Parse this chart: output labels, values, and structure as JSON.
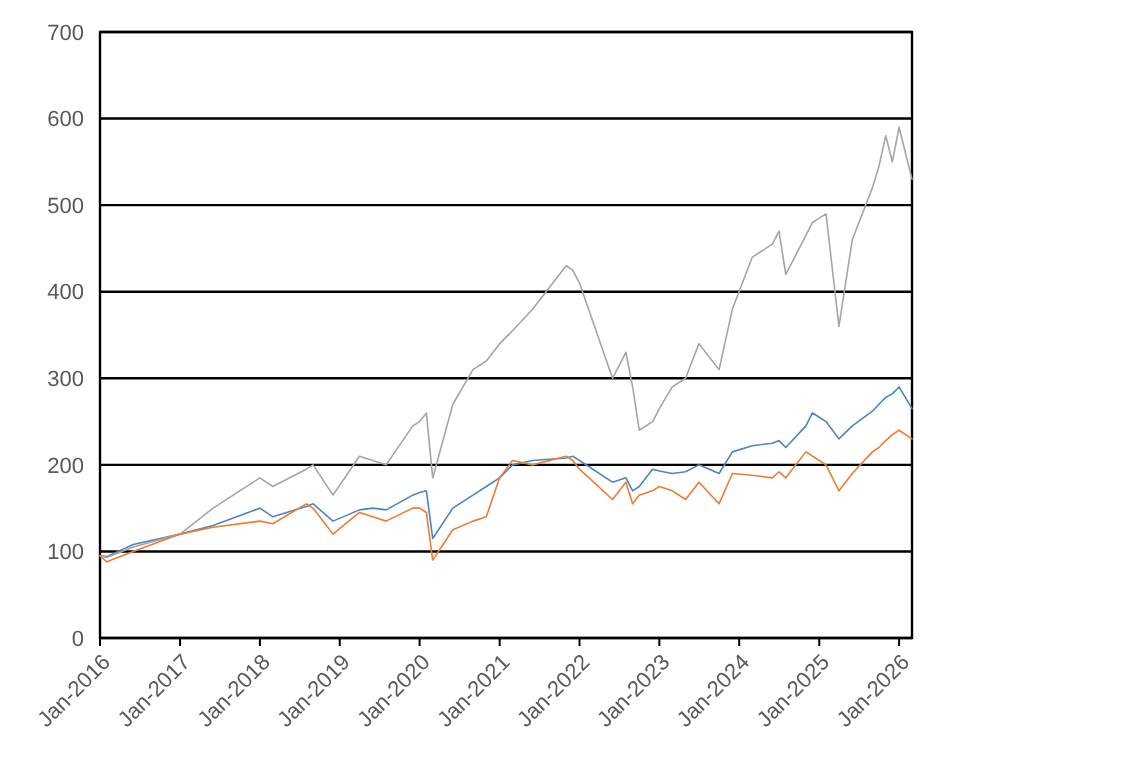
{
  "chart_data": {
    "type": "line",
    "x": [
      "2016-01",
      "2016-02",
      "2016-06",
      "2017-01",
      "2017-06",
      "2018-01",
      "2018-03",
      "2018-08",
      "2018-09",
      "2018-12",
      "2019-04",
      "2019-06",
      "2019-08",
      "2019-12",
      "2020-01",
      "2020-02",
      "2020-03",
      "2020-06",
      "2020-09",
      "2020-11",
      "2021-01",
      "2021-03",
      "2021-06",
      "2021-11",
      "2021-12",
      "2022-01",
      "2022-06",
      "2022-08",
      "2022-09",
      "2022-10",
      "2022-12",
      "2023-01",
      "2023-03",
      "2023-05",
      "2023-07",
      "2023-10",
      "2023-12",
      "2024-03",
      "2024-06",
      "2024-07",
      "2024-08",
      "2024-11",
      "2024-12",
      "2025-01",
      "2025-02",
      "2025-04",
      "2025-06",
      "2025-09",
      "2025-10",
      "2025-11",
      "2025-12",
      "2026-01",
      "2026-03"
    ],
    "series": [
      {
        "color": "#4a86c0",
        "values": [
          95,
          94,
          108,
          120,
          130,
          150,
          140,
          152,
          155,
          135,
          148,
          150,
          148,
          165,
          168,
          170,
          115,
          150,
          165,
          175,
          185,
          200,
          205,
          208,
          210,
          205,
          180,
          185,
          170,
          175,
          195,
          193,
          190,
          192,
          200,
          190,
          215,
          222,
          225,
          228,
          220,
          245,
          260,
          255,
          250,
          230,
          245,
          262,
          270,
          278,
          282,
          290,
          265
        ]
      },
      {
        "color": "#a5a5a5",
        "values": [
          95,
          93,
          105,
          120,
          150,
          185,
          175,
          195,
          200,
          165,
          210,
          205,
          200,
          245,
          250,
          260,
          185,
          270,
          310,
          320,
          340,
          355,
          380,
          430,
          425,
          410,
          300,
          330,
          290,
          240,
          250,
          265,
          290,
          300,
          340,
          310,
          380,
          440,
          455,
          470,
          420,
          465,
          480,
          485,
          490,
          360,
          460,
          520,
          545,
          580,
          550,
          590,
          530
        ]
      },
      {
        "color": "#ed7d31",
        "values": [
          95,
          88,
          100,
          120,
          128,
          135,
          132,
          155,
          150,
          120,
          145,
          140,
          135,
          150,
          150,
          145,
          90,
          125,
          135,
          140,
          185,
          205,
          200,
          210,
          205,
          195,
          160,
          180,
          155,
          165,
          170,
          175,
          170,
          160,
          180,
          155,
          190,
          188,
          185,
          192,
          185,
          215,
          210,
          205,
          200,
          170,
          190,
          215,
          220,
          228,
          235,
          240,
          230
        ]
      }
    ],
    "ylim": [
      0,
      700
    ],
    "yticks": [
      0,
      100,
      200,
      300,
      400,
      500,
      600,
      700
    ],
    "xlim": [
      "2016-01",
      "2026-03"
    ],
    "xticks": [
      {
        "value": "2016-01",
        "label": "Jan-2016"
      },
      {
        "value": "2017-01",
        "label": "Jan-2017"
      },
      {
        "value": "2018-01",
        "label": "Jan-2018"
      },
      {
        "value": "2019-01",
        "label": "Jan-2019"
      },
      {
        "value": "2020-01",
        "label": "Jan-2020"
      },
      {
        "value": "2021-01",
        "label": "Jan-2021"
      },
      {
        "value": "2022-01",
        "label": "Jan-2022"
      },
      {
        "value": "2023-01",
        "label": "Jan-2023"
      },
      {
        "value": "2024-01",
        "label": "Jan-2024"
      },
      {
        "value": "2025-01",
        "label": "Jan-2025"
      },
      {
        "value": "2026-01",
        "label": "Jan-2026"
      }
    ],
    "grid": "y",
    "line_style": "solid"
  }
}
